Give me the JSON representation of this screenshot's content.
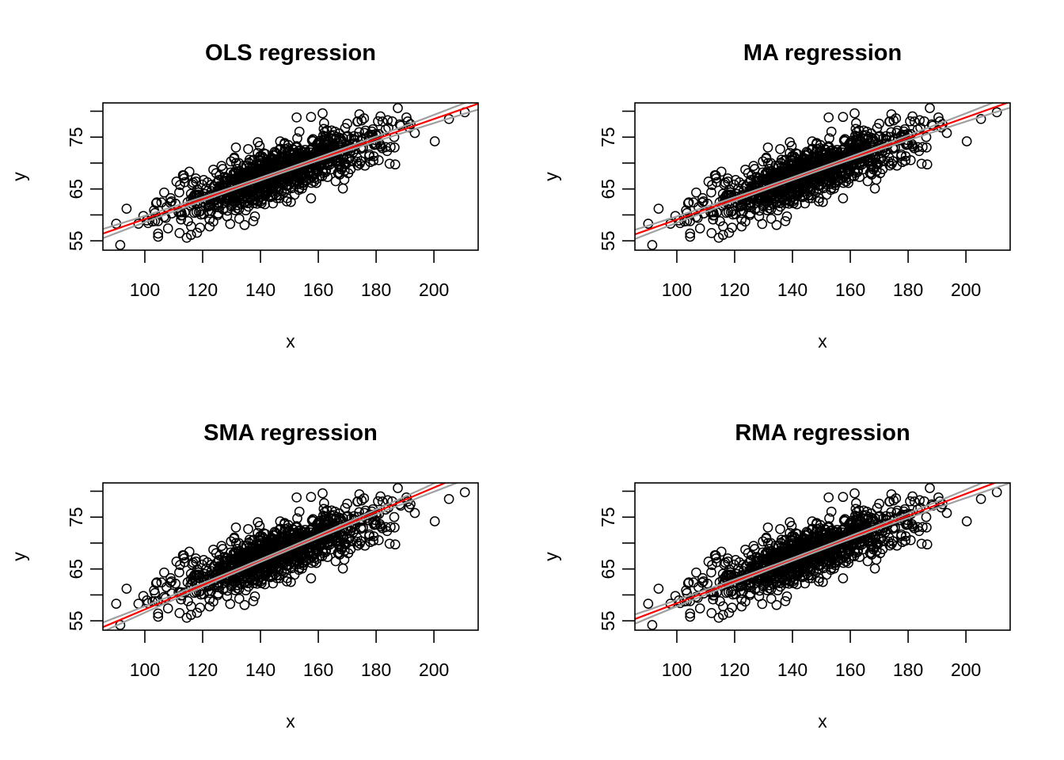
{
  "chart_data": [
    {
      "type": "scatter",
      "title": "OLS regression",
      "xlabel": "x",
      "ylabel": "y",
      "xlim": [
        85.5,
        215.3
      ],
      "ylim": [
        53.2,
        81.6
      ],
      "xticks": [
        100,
        120,
        140,
        160,
        180,
        200
      ],
      "yticks": [
        55,
        60,
        65,
        70,
        75,
        80
      ],
      "yticklabels": [
        "55",
        "",
        "65",
        "",
        "75",
        ""
      ],
      "fit_line": {
        "intercept": 39.9,
        "slope": 0.193,
        "color": "#ff0000"
      },
      "confidence_band_color": "#a0a0a0",
      "grid": false
    },
    {
      "type": "scatter",
      "title": "MA regression",
      "xlabel": "x",
      "ylabel": "y",
      "xlim": [
        85.5,
        215.3
      ],
      "ylim": [
        53.2,
        81.6
      ],
      "xticks": [
        100,
        120,
        140,
        160,
        180,
        200
      ],
      "yticks": [
        55,
        60,
        65,
        70,
        75,
        80
      ],
      "yticklabels": [
        "55",
        "",
        "65",
        "",
        "75",
        ""
      ],
      "fit_line": {
        "intercept": 39.4,
        "slope": 0.197,
        "color": "#ff0000"
      },
      "confidence_band_color": "#a0a0a0",
      "grid": false
    },
    {
      "type": "scatter",
      "title": "SMA regression",
      "xlabel": "x",
      "ylabel": "y",
      "xlim": [
        85.5,
        215.3
      ],
      "ylim": [
        53.2,
        81.6
      ],
      "xticks": [
        100,
        120,
        140,
        160,
        180,
        200
      ],
      "yticks": [
        55,
        60,
        65,
        70,
        75,
        80
      ],
      "yticklabels": [
        "55",
        "",
        "65",
        "",
        "75",
        ""
      ],
      "fit_line": {
        "intercept": 33.7,
        "slope": 0.235,
        "color": "#ff0000"
      },
      "confidence_band_color": "#a0a0a0",
      "grid": false
    },
    {
      "type": "scatter",
      "title": "RMA regression",
      "xlabel": "x",
      "ylabel": "y",
      "xlim": [
        85.5,
        215.3
      ],
      "ylim": [
        53.2,
        81.6
      ],
      "xticks": [
        100,
        120,
        140,
        160,
        180,
        200
      ],
      "yticks": [
        55,
        60,
        65,
        70,
        75,
        80
      ],
      "yticklabels": [
        "55",
        "",
        "65",
        "",
        "75",
        ""
      ],
      "fit_line": {
        "intercept": 37.3,
        "slope": 0.211,
        "color": "#ff0000"
      },
      "confidence_band_color": "#a0a0a0",
      "grid": false
    }
  ],
  "shared_points": {
    "cloud": {
      "n": 1000,
      "x_mean": 145,
      "x_sd": 18,
      "y_mean": 68,
      "y_sd": 4.3,
      "correlation": 0.82,
      "seed": 12345,
      "x_range": [
        100,
        192
      ],
      "y_range": [
        56,
        80
      ]
    },
    "explicit": [
      [
        91.5,
        54.2
      ],
      [
        93.7,
        61.2
      ],
      [
        90.1,
        58.3
      ],
      [
        97.8,
        58.3
      ],
      [
        104.6,
        55.8
      ],
      [
        104.6,
        56.4
      ],
      [
        99.5,
        59.8
      ],
      [
        103.5,
        58.8
      ],
      [
        108,
        57.4
      ],
      [
        112,
        56.5
      ],
      [
        114.5,
        55.6
      ],
      [
        116,
        57.8
      ],
      [
        113.5,
        67.6
      ],
      [
        131.5,
        73.0
      ],
      [
        210.7,
        79.8
      ],
      [
        205.2,
        78.5
      ],
      [
        200.3,
        74.2
      ],
      [
        193.4,
        75.8
      ],
      [
        187.5,
        80.6
      ],
      [
        190.5,
        78.8
      ],
      [
        181.5,
        79.0
      ],
      [
        152.5,
        78.8
      ],
      [
        157.5,
        78.9
      ],
      [
        161.5,
        79.6
      ],
      [
        162,
        77.7
      ],
      [
        157.5,
        63.2
      ],
      [
        150.5,
        62.5
      ],
      [
        168.5,
        65.1
      ],
      [
        166,
        66.5
      ],
      [
        146,
        64.5
      ],
      [
        178,
        70.2
      ],
      [
        185,
        73.1
      ],
      [
        188.5,
        77.2
      ],
      [
        173.5,
        78.0
      ],
      [
        170,
        77.6
      ],
      [
        176,
        75.8
      ]
    ]
  }
}
